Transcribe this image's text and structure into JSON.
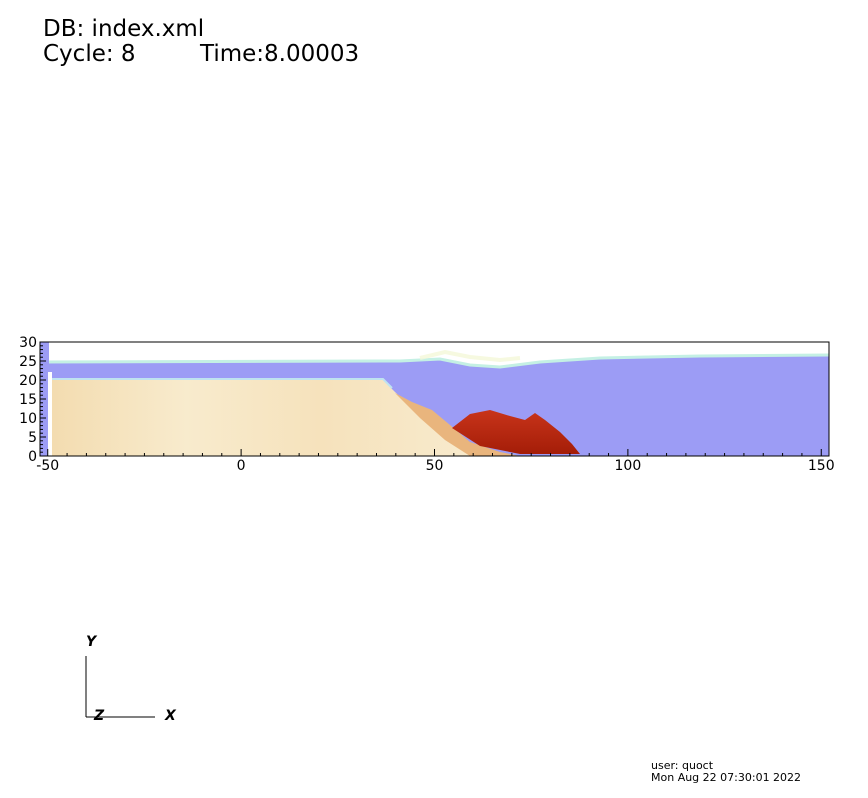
{
  "header": {
    "db": "DB: index.xml",
    "cycle": "Cycle: 8",
    "time": "Time:8.00003"
  },
  "plot": {
    "x_ticks": [
      "-50",
      "0",
      "50",
      "100",
      "150"
    ],
    "y_ticks": [
      "0",
      "5",
      "10",
      "15",
      "20",
      "25",
      "30"
    ],
    "x_range": [
      -52,
      152
    ],
    "y_range": [
      0,
      30
    ],
    "colors": {
      "water": "#9c9cf5",
      "sand": "#f7e8c4",
      "sediment_mid": "#e8b37a",
      "sediment_dark": "#b9260f",
      "interface": "#c4f0e4"
    }
  },
  "triad": {
    "y_label": "Y",
    "z_label": "Z",
    "x_label": "X"
  },
  "footer": {
    "user": "user: quoct",
    "date": "Mon Aug 22 07:30:01 2022"
  }
}
